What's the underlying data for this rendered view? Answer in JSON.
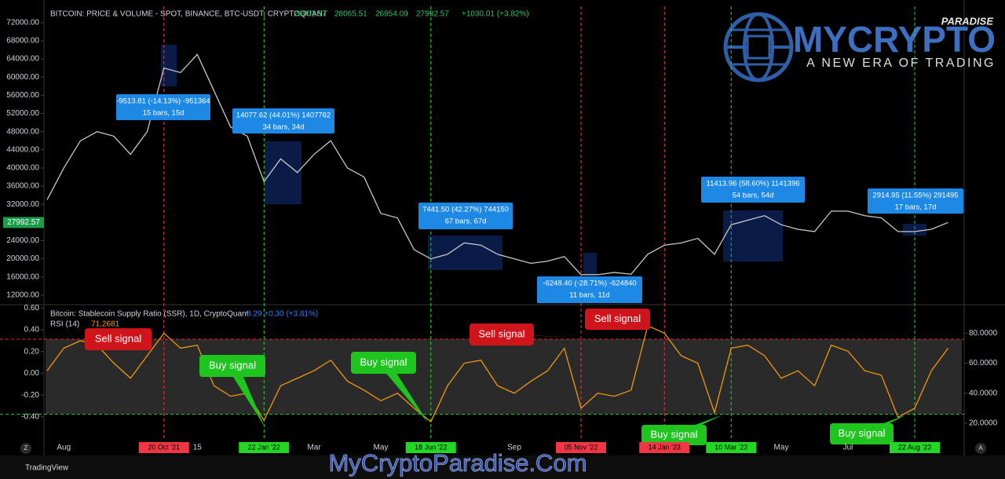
{
  "header": {
    "title": "BITCOIN: PRICE & VOLUME - SPOT, BINANCE, BTC-USDT, CRYPTOQUANT",
    "ohlc": [
      26962.57,
      28065.51,
      26954.09,
      27992.57
    ],
    "change": "+1030.01 (+3.82%)"
  },
  "logo": {
    "brand": "MYCRYPTO",
    "tag": "PARADISE",
    "slogan": "A NEW ERA OF TRADING"
  },
  "footer": {
    "platform": "TradingView",
    "watermark": "MyCryptoParadise.Com",
    "left_button": "Z",
    "right_button": "A"
  },
  "measurements": [
    {
      "change": "-9513.81 (-14.13%) -951364",
      "span": "15 bars, 15d"
    },
    {
      "change": "14077.62 (44.01%) 1407762",
      "span": "34 bars, 34d"
    },
    {
      "change": "7441.50 (42.27%) 744150",
      "span": "67 bars, 67d"
    },
    {
      "change": "-6248.40 (-28.71%) -624840",
      "span": "11 bars, 11d"
    },
    {
      "change": "11413.96 (58.60%) 1141396",
      "span": "54 bars, 54d"
    },
    {
      "change": "2914.95 (11.55%) 291495",
      "span": "17 bars, 17d"
    }
  ],
  "annotations": [
    {
      "text": "Sell signal",
      "color": "#d0141b"
    },
    {
      "text": "Buy signal",
      "color": "#1fc41f"
    },
    {
      "text": "Buy signal",
      "color": "#1fc41f"
    },
    {
      "text": "Sell signal",
      "color": "#d0141b"
    },
    {
      "text": "Sell signal",
      "color": "#d0141b"
    },
    {
      "text": "Buy signal",
      "color": "#1fc41f"
    },
    {
      "text": "Buy signal",
      "color": "#1fc41f"
    }
  ],
  "chart_data": [
    {
      "type": "line",
      "categories": [
        null,
        "Aug",
        null,
        null,
        null,
        null,
        null,
        "20 Oct '21",
        null,
        "15",
        null,
        null,
        null,
        "22 Jan '22",
        null,
        null,
        "Mar",
        null,
        null,
        null,
        "May",
        null,
        null,
        "18 Jun '22",
        null,
        null,
        null,
        null,
        "Sep",
        null,
        null,
        null,
        "05 Nov '22",
        null,
        null,
        null,
        null,
        "14 Jan '23",
        null,
        null,
        null,
        "10 Mar '23",
        null,
        null,
        "May",
        null,
        null,
        null,
        "Jul",
        null,
        null,
        null,
        "22 Aug '23",
        null,
        null
      ],
      "category_colors": [
        null,
        null,
        null,
        null,
        null,
        null,
        null,
        "#f23645",
        null,
        null,
        null,
        null,
        null,
        "#22d822",
        null,
        null,
        null,
        null,
        null,
        null,
        null,
        null,
        null,
        "#22d822",
        null,
        null,
        null,
        null,
        null,
        null,
        null,
        null,
        "#f23645",
        null,
        null,
        null,
        null,
        "#f23645",
        null,
        null,
        null,
        "#22d822",
        null,
        null,
        null,
        null,
        null,
        null,
        null,
        null,
        null,
        null,
        "#22d822",
        null,
        null
      ],
      "color": "#c8c8c8",
      "values": [
        33000,
        40000,
        46000,
        48000,
        47000,
        43000,
        48000,
        62000,
        61000,
        65000,
        57000,
        49000,
        47000,
        37000,
        42000,
        39000,
        43000,
        46000,
        40000,
        38000,
        30000,
        29000,
        22000,
        20000,
        21000,
        23500,
        23000,
        21000,
        20000,
        19000,
        19500,
        20500,
        16500,
        16500,
        17000,
        16600,
        21000,
        23000,
        23500,
        24500,
        21000,
        27500,
        28500,
        29500,
        27500,
        26500,
        26000,
        30500,
        30500,
        29500,
        29000,
        26000,
        26000,
        26500,
        28000
      ],
      "ylim": [
        9900,
        75600
      ],
      "yticks": [
        {
          "value": 12000,
          "label": "12000.00"
        },
        {
          "value": 16000,
          "label": "16000.00"
        },
        {
          "value": 20000,
          "label": "20000.00"
        },
        {
          "value": 24000,
          "label": "24000.00"
        },
        {
          "value": 28000,
          "label": "28000.00"
        },
        {
          "value": 32000,
          "label": "32000.00"
        },
        {
          "value": 36000,
          "label": "36000.00"
        },
        {
          "value": 40000,
          "label": "40000.00"
        },
        {
          "value": 44000,
          "label": "44000.00"
        },
        {
          "value": 48000,
          "label": "48000.00"
        },
        {
          "value": 52000,
          "label": "52000.00"
        },
        {
          "value": 56000,
          "label": "56000.00"
        },
        {
          "value": 60000,
          "label": "60000.00"
        },
        {
          "value": 64000,
          "label": "64000.00"
        },
        {
          "value": 68000,
          "label": "68000.00"
        },
        {
          "value": 72000,
          "label": "72000.00"
        }
      ],
      "grid": false
    },
    {
      "type": "line",
      "title": "Bitcoin: Stablecoin Supply Ratio (SSR), 1D, CryptoQuant",
      "readout": "8.29 +0.30 (+3.81%)",
      "ylim": [
        -0.61,
        0.63
      ],
      "yticks": [
        {
          "value": -0.4,
          "label": "-0.40"
        },
        {
          "value": -0.2,
          "label": "-0.20"
        },
        {
          "value": 0,
          "label": "0.00"
        },
        {
          "value": 0.2,
          "label": "0.20"
        },
        {
          "value": 0.4,
          "label": "0.40"
        },
        {
          "value": 0.6,
          "label": "0.60"
        }
      ],
      "y2lim": [
        9,
        99
      ],
      "y2ticks": [
        {
          "value": 20,
          "label": "20.0000"
        },
        {
          "value": 40,
          "label": "40.0000"
        },
        {
          "value": 60,
          "label": "60.0000"
        },
        {
          "value": 80,
          "label": "80.0000"
        }
      ],
      "hlines": [
        {
          "value": 76,
          "color": "#e03030"
        },
        {
          "value": 26,
          "color": "#22c022"
        }
      ],
      "series": [
        {
          "name": "RSI (14)",
          "last": 71.2681,
          "color": "#f0960a",
          "axis": "y2",
          "values": [
            55,
            70,
            75,
            72,
            60,
            50,
            65,
            80,
            70,
            72,
            45,
            38,
            40,
            22,
            45,
            50,
            55,
            62,
            48,
            42,
            35,
            40,
            30,
            21,
            45,
            60,
            62,
            45,
            40,
            48,
            55,
            70,
            30,
            40,
            38,
            42,
            85,
            80,
            65,
            60,
            27,
            70,
            72,
            65,
            50,
            55,
            45,
            72,
            68,
            55,
            52,
            24,
            30,
            55,
            70
          ]
        }
      ],
      "grid": false
    }
  ]
}
